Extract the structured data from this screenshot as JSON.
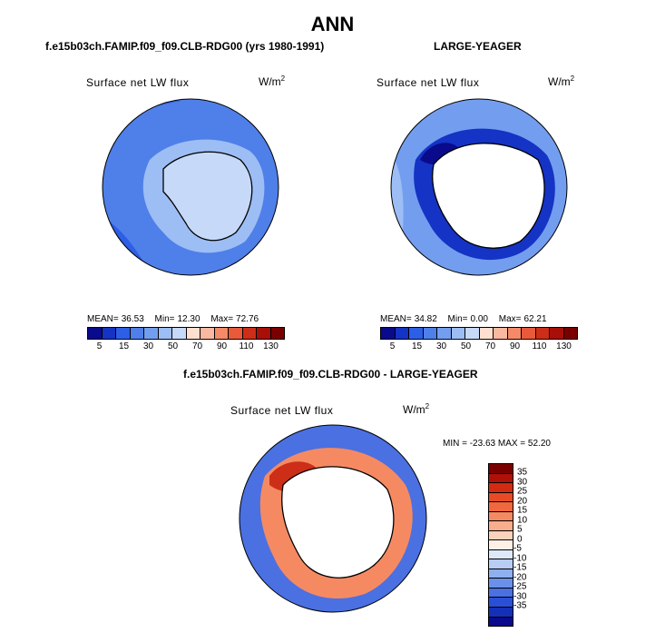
{
  "main_title": "ANN",
  "panels": [
    {
      "id": "model",
      "case_title": "f.e15b03ch.FAMIP.f09_f09.CLB-RDG00 (yrs 1980-1991)",
      "variable": "Surface net LW flux",
      "units_base": "W/m",
      "units_exp": "2",
      "stats": {
        "mean_label": "MEAN=",
        "mean": "36.53",
        "min_label": "Min=",
        "min": "12.30",
        "max_label": "Max=",
        "max": "72.76"
      }
    },
    {
      "id": "obs",
      "case_title": "LARGE-YEAGER",
      "variable": "Surface net LW flux",
      "units_base": "W/m",
      "units_exp": "2",
      "stats": {
        "mean_label": "MEAN=",
        "mean": "34.82",
        "min_label": "Min=",
        "min": "0.00",
        "max_label": "Max=",
        "max": "62.21"
      }
    },
    {
      "id": "diff",
      "case_title": "f.e15b03ch.FAMIP.f09_f09.CLB-RDG00 - LARGE-YEAGER",
      "variable": "Surface net LW flux",
      "units_base": "W/m",
      "units_exp": "2",
      "stats_text": "MIN = -23.63 MAX =  52.20"
    }
  ],
  "abs_colorbar": {
    "colors": [
      "#0a0a8c",
      "#1533c4",
      "#2d5ee6",
      "#4f7fe8",
      "#739ef0",
      "#9dbdf5",
      "#c6d9f8",
      "#ffe0d0",
      "#fbb8a0",
      "#f58a68",
      "#e85a3a",
      "#cc2e18",
      "#a80f08",
      "#7a0000"
    ],
    "ticks": [
      "5",
      "15",
      "30",
      "50",
      "70",
      "90",
      "110",
      "130"
    ]
  },
  "diff_colorbar": {
    "colors": [
      "#7a0000",
      "#b01008",
      "#d42a12",
      "#e84a26",
      "#f0683e",
      "#f58a62",
      "#f8ad8c",
      "#fbd2bc",
      "#fff0e6",
      "#dde8f8",
      "#b7cdf4",
      "#8fb0ef",
      "#6a90ea",
      "#4a70e2",
      "#2a4fd6",
      "#1530b8",
      "#0a0a8c"
    ],
    "ticks": [
      "35",
      "30",
      "25",
      "20",
      "15",
      "10",
      "5",
      "0",
      "-5",
      "-10",
      "-15",
      "-20",
      "-25",
      "-30",
      "-35"
    ]
  },
  "map_colors": {
    "ocean_model": "#4f7fe8",
    "ocean_model_dark": "#2d5ee6",
    "ice_model": "#9dbdf5",
    "land_model": "#c6d9f8",
    "ocean_obs": "#739ef0",
    "ocean_obs_light": "#9dbdf5",
    "ring_obs": "#1533c4",
    "ring_obs_dark": "#0a0a8c",
    "diff_ocean": "#4a70e2",
    "diff_ring": "#f58a62",
    "diff_ring_dark": "#cc2e18",
    "land_blank": "#ffffff"
  }
}
